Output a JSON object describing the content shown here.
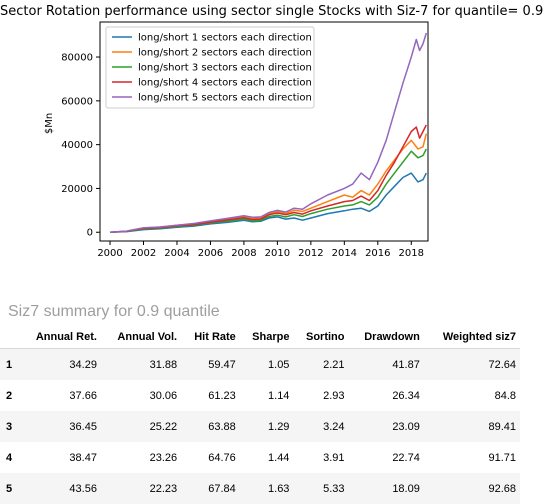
{
  "chart_data": {
    "type": "line",
    "title": "Sector Rotation performance using sector single Stocks with Siz-7 for quantile= 0.9",
    "xlabel": "",
    "ylabel": "$Mn",
    "xlim": [
      1999.4,
      2019.0
    ],
    "ylim": [
      -4000,
      96000
    ],
    "x_ticks": [
      2000,
      2002,
      2004,
      2006,
      2008,
      2010,
      2012,
      2014,
      2016,
      2018
    ],
    "y_ticks": [
      0,
      20000,
      40000,
      60000,
      80000
    ],
    "legend_position": "upper-left",
    "grid": false,
    "series": [
      {
        "name": "long/short 1 sectors each direction",
        "color": "#1f77b4",
        "points": [
          [
            2000,
            0
          ],
          [
            2001,
            300
          ],
          [
            2002,
            1200
          ],
          [
            2003,
            1600
          ],
          [
            2004,
            2300
          ],
          [
            2005,
            2800
          ],
          [
            2006,
            3800
          ],
          [
            2007,
            4500
          ],
          [
            2008,
            5500
          ],
          [
            2008.5,
            4800
          ],
          [
            2009,
            5000
          ],
          [
            2009.5,
            6500
          ],
          [
            2010,
            7000
          ],
          [
            2010.5,
            6000
          ],
          [
            2011,
            6500
          ],
          [
            2011.5,
            5500
          ],
          [
            2012,
            6500
          ],
          [
            2013,
            8500
          ],
          [
            2014,
            9800
          ],
          [
            2014.5,
            10500
          ],
          [
            2015,
            11000
          ],
          [
            2015.5,
            9500
          ],
          [
            2016,
            12000
          ],
          [
            2016.5,
            17000
          ],
          [
            2017,
            21000
          ],
          [
            2017.5,
            25000
          ],
          [
            2018,
            27000
          ],
          [
            2018.4,
            23000
          ],
          [
            2018.7,
            24000
          ],
          [
            2018.9,
            27000
          ]
        ]
      },
      {
        "name": "long/short 2 sectors each direction",
        "color": "#ff7f0e",
        "points": [
          [
            2000,
            0
          ],
          [
            2001,
            500
          ],
          [
            2002,
            2000
          ],
          [
            2003,
            2400
          ],
          [
            2004,
            3200
          ],
          [
            2005,
            3800
          ],
          [
            2006,
            5000
          ],
          [
            2007,
            6000
          ],
          [
            2008,
            7000
          ],
          [
            2008.5,
            6200
          ],
          [
            2009,
            6500
          ],
          [
            2009.5,
            8500
          ],
          [
            2010,
            9500
          ],
          [
            2010.5,
            8500
          ],
          [
            2011,
            10000
          ],
          [
            2011.5,
            9500
          ],
          [
            2012,
            11000
          ],
          [
            2013,
            14000
          ],
          [
            2014,
            17000
          ],
          [
            2014.5,
            16000
          ],
          [
            2015,
            19000
          ],
          [
            2015.5,
            17000
          ],
          [
            2016,
            22000
          ],
          [
            2016.5,
            28000
          ],
          [
            2017,
            33000
          ],
          [
            2017.5,
            38000
          ],
          [
            2018,
            42000
          ],
          [
            2018.4,
            38000
          ],
          [
            2018.7,
            39000
          ],
          [
            2018.9,
            45000
          ]
        ]
      },
      {
        "name": "long/short 3 sectors each direction",
        "color": "#2ca02c",
        "points": [
          [
            2000,
            0
          ],
          [
            2001,
            400
          ],
          [
            2002,
            1500
          ],
          [
            2003,
            1900
          ],
          [
            2004,
            2600
          ],
          [
            2005,
            3200
          ],
          [
            2006,
            4200
          ],
          [
            2007,
            5000
          ],
          [
            2008,
            6000
          ],
          [
            2008.5,
            5200
          ],
          [
            2009,
            5500
          ],
          [
            2009.5,
            7200
          ],
          [
            2010,
            7800
          ],
          [
            2010.5,
            7000
          ],
          [
            2011,
            8000
          ],
          [
            2011.5,
            7200
          ],
          [
            2012,
            8500
          ],
          [
            2013,
            10500
          ],
          [
            2014,
            12000
          ],
          [
            2014.5,
            12500
          ],
          [
            2015,
            14000
          ],
          [
            2015.5,
            12500
          ],
          [
            2016,
            16000
          ],
          [
            2016.5,
            22000
          ],
          [
            2017,
            27000
          ],
          [
            2017.5,
            32000
          ],
          [
            2018,
            37000
          ],
          [
            2018.4,
            34000
          ],
          [
            2018.7,
            35000
          ],
          [
            2018.9,
            38000
          ]
        ]
      },
      {
        "name": "long/short 4 sectors each direction",
        "color": "#d62728",
        "points": [
          [
            2000,
            0
          ],
          [
            2001,
            450
          ],
          [
            2002,
            1700
          ],
          [
            2003,
            2100
          ],
          [
            2004,
            2900
          ],
          [
            2005,
            3500
          ],
          [
            2006,
            4600
          ],
          [
            2007,
            5600
          ],
          [
            2008,
            6600
          ],
          [
            2008.5,
            5800
          ],
          [
            2009,
            6000
          ],
          [
            2009.5,
            8000
          ],
          [
            2010,
            8800
          ],
          [
            2010.5,
            8000
          ],
          [
            2011,
            9000
          ],
          [
            2011.5,
            8300
          ],
          [
            2012,
            9800
          ],
          [
            2013,
            12000
          ],
          [
            2014,
            14000
          ],
          [
            2014.5,
            14500
          ],
          [
            2015,
            16500
          ],
          [
            2015.5,
            14500
          ],
          [
            2016,
            19000
          ],
          [
            2016.5,
            26000
          ],
          [
            2017,
            32000
          ],
          [
            2017.5,
            39000
          ],
          [
            2018,
            46000
          ],
          [
            2018.3,
            48000
          ],
          [
            2018.5,
            43000
          ],
          [
            2018.7,
            46000
          ],
          [
            2018.9,
            49000
          ]
        ]
      },
      {
        "name": "long/short 5 sectors each direction",
        "color": "#9467bd",
        "points": [
          [
            2000,
            0
          ],
          [
            2001,
            500
          ],
          [
            2002,
            2000
          ],
          [
            2003,
            2400
          ],
          [
            2004,
            3200
          ],
          [
            2005,
            4000
          ],
          [
            2006,
            5200
          ],
          [
            2007,
            6300
          ],
          [
            2008,
            7500
          ],
          [
            2008.5,
            6800
          ],
          [
            2009,
            7000
          ],
          [
            2009.5,
            9000
          ],
          [
            2010,
            10000
          ],
          [
            2010.5,
            9200
          ],
          [
            2011,
            11000
          ],
          [
            2011.5,
            10500
          ],
          [
            2012,
            13000
          ],
          [
            2013,
            17000
          ],
          [
            2014,
            20000
          ],
          [
            2014.5,
            22000
          ],
          [
            2015,
            27000
          ],
          [
            2015.5,
            24000
          ],
          [
            2016,
            32000
          ],
          [
            2016.5,
            42000
          ],
          [
            2017,
            55000
          ],
          [
            2017.5,
            68000
          ],
          [
            2018,
            80000
          ],
          [
            2018.3,
            88000
          ],
          [
            2018.5,
            83000
          ],
          [
            2018.7,
            86000
          ],
          [
            2018.9,
            91000
          ]
        ]
      }
    ]
  },
  "summary": {
    "heading": "Siz7 summary for 0.9 quantile",
    "columns": [
      "",
      "Annual Ret.",
      "Annual Vol.",
      "Hit Rate",
      "Sharpe",
      "Sortino",
      "Drawdown",
      "Weighted siz7"
    ],
    "rows": [
      [
        "1",
        "34.29",
        "31.88",
        "59.47",
        "1.05",
        "2.21",
        "41.87",
        "72.64"
      ],
      [
        "2",
        "37.66",
        "30.06",
        "61.23",
        "1.14",
        "2.93",
        "26.34",
        "84.8"
      ],
      [
        "3",
        "36.45",
        "25.22",
        "63.88",
        "1.29",
        "3.24",
        "23.09",
        "89.41"
      ],
      [
        "4",
        "38.47",
        "23.26",
        "64.76",
        "1.44",
        "3.91",
        "22.74",
        "91.71"
      ],
      [
        "5",
        "43.56",
        "22.23",
        "67.84",
        "1.63",
        "5.33",
        "18.09",
        "92.68"
      ]
    ]
  }
}
